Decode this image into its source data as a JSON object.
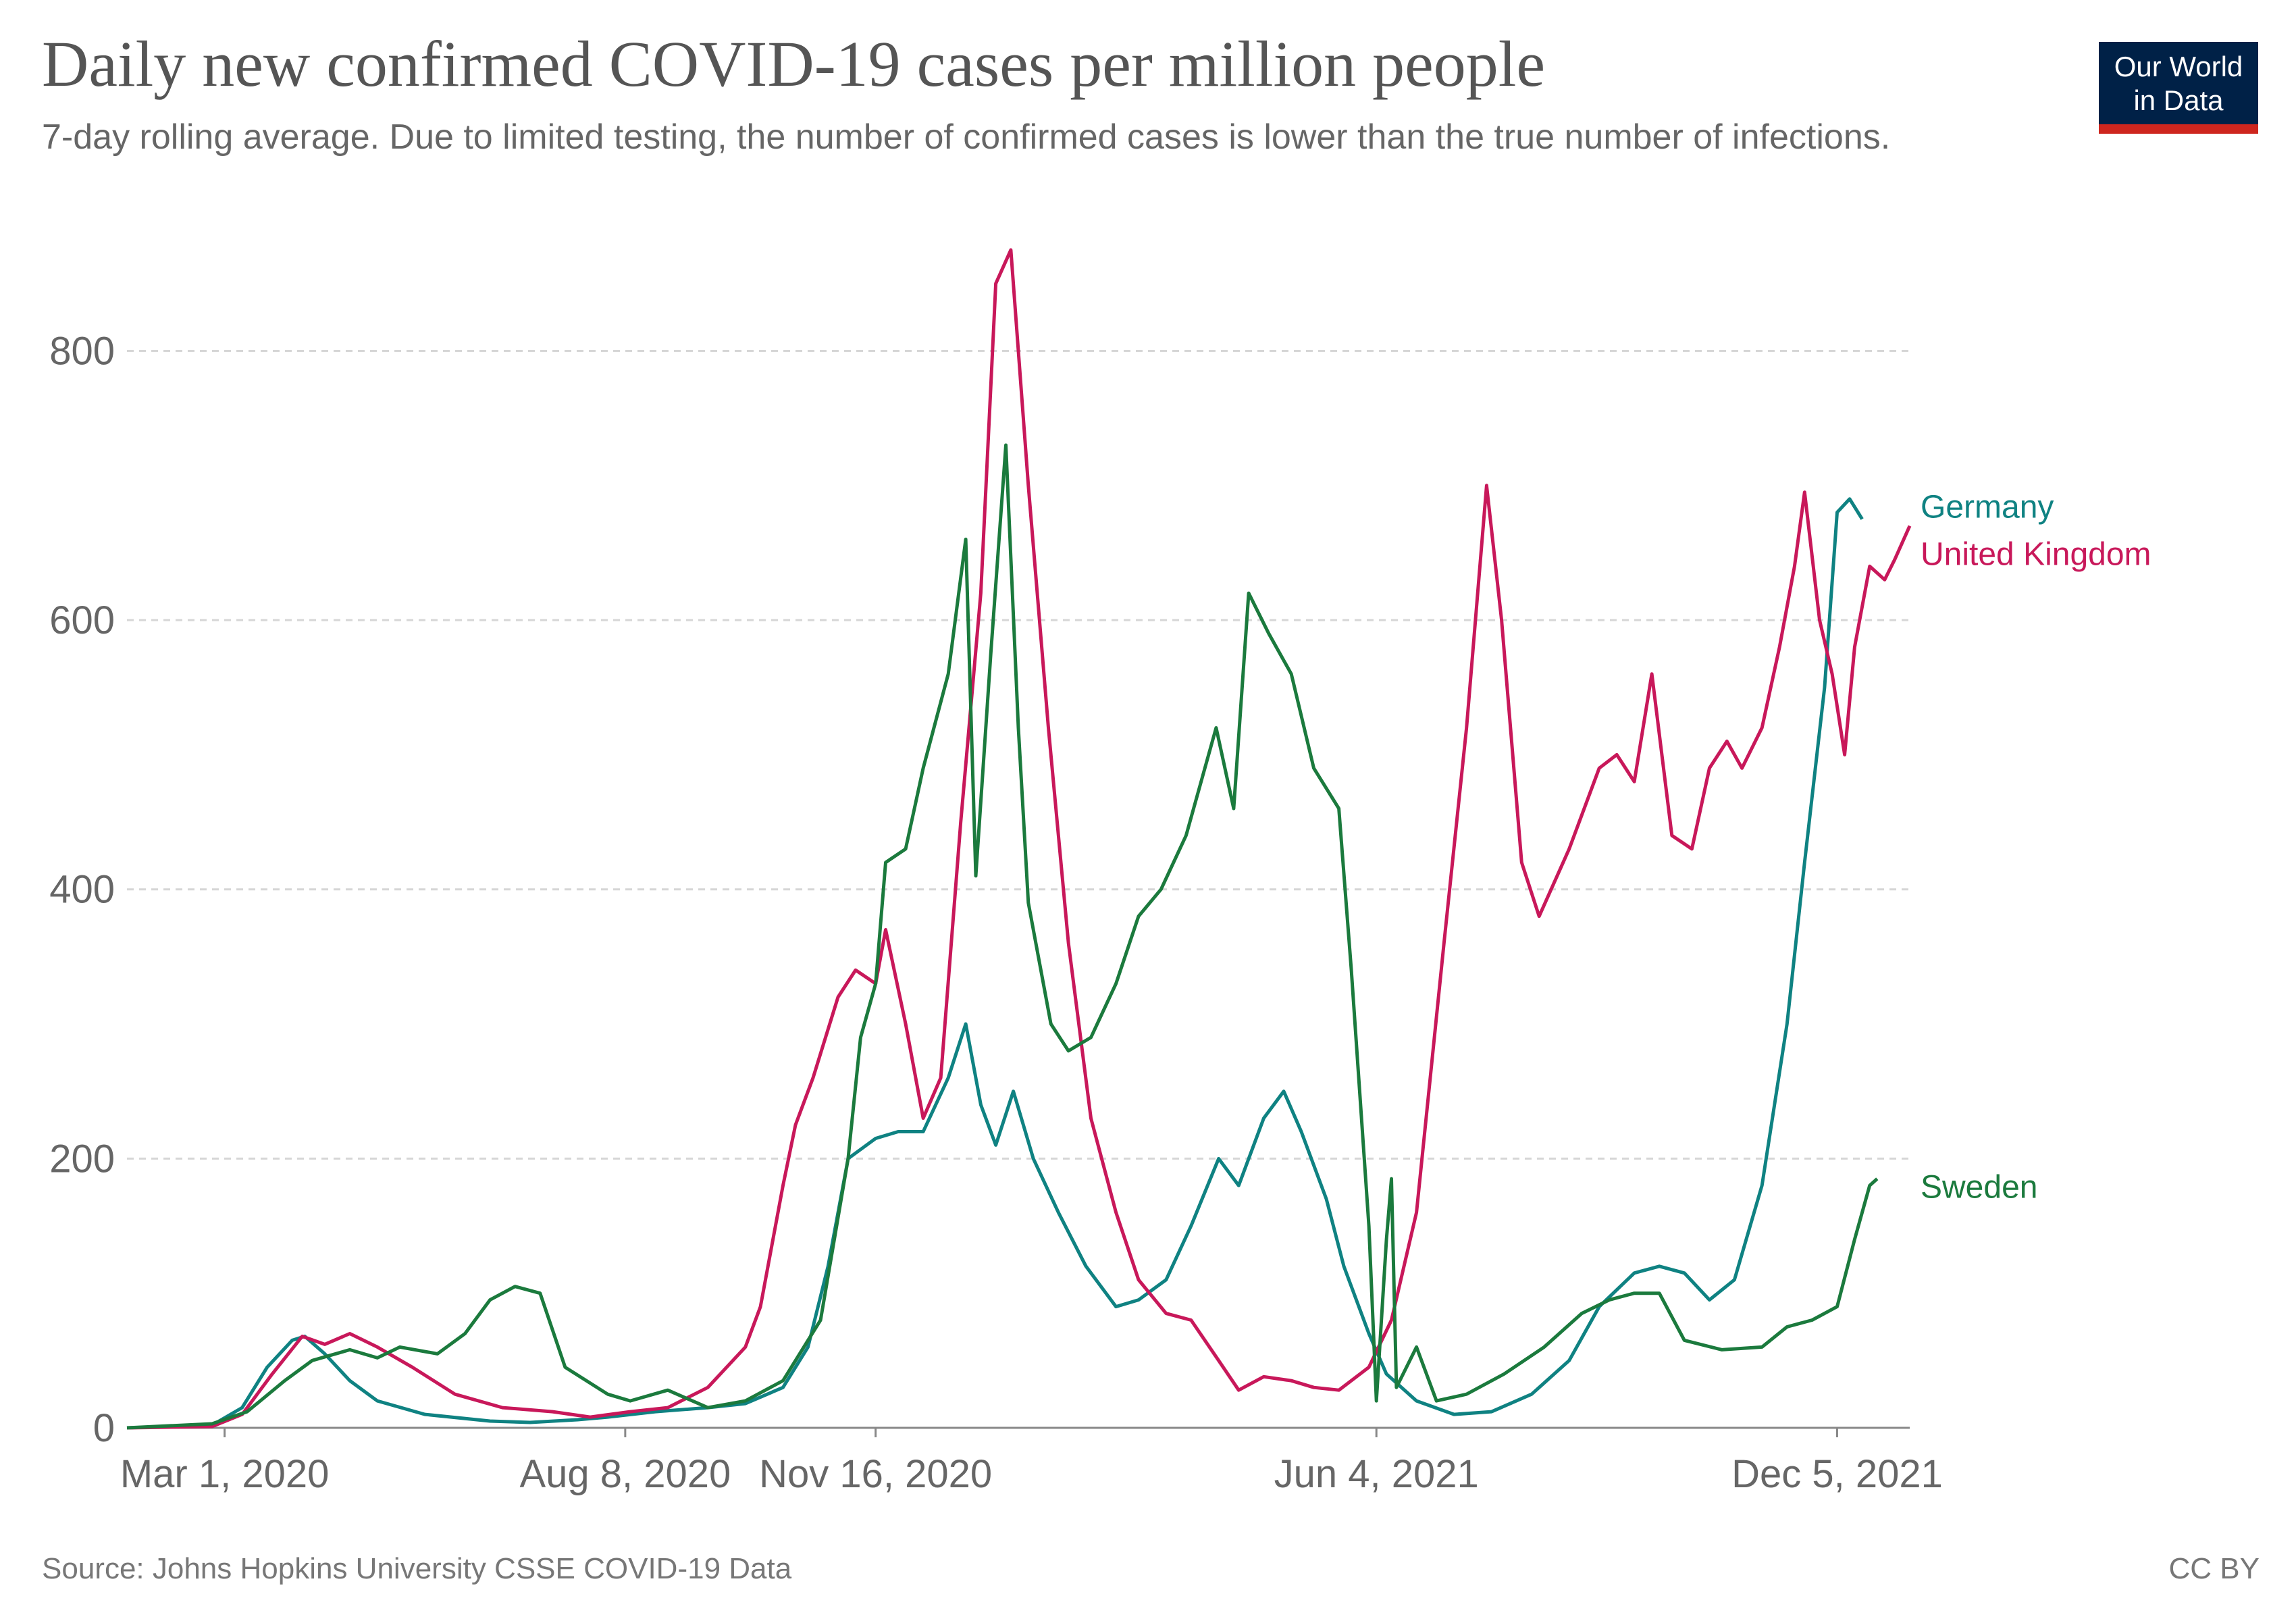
{
  "header": {
    "title": "Daily new confirmed COVID-19 cases per million people",
    "subtitle": "7-day rolling average. Due to limited testing, the number of confirmed cases is lower than the true number of infections."
  },
  "logo": {
    "line1": "Our World",
    "line2": "in Data",
    "bg_color": "#002147",
    "accent_color": "#ce261e"
  },
  "footer": {
    "source": "Source: Johns Hopkins University CSSE COVID-19 Data",
    "license": "CC BY"
  },
  "chart_data": {
    "type": "line",
    "title": "Daily new confirmed COVID-19 cases per million people",
    "xlabel": "",
    "ylabel": "",
    "ylim": [
      0,
      880
    ],
    "x_range": [
      "2020-01-22",
      "2022-01-03"
    ],
    "yticks": [
      0,
      200,
      400,
      600,
      800
    ],
    "ytick_labels": [
      "0",
      "200",
      "400",
      "600",
      "800"
    ],
    "xticks": [
      {
        "date": "2020-03-01",
        "label": "Mar 1, 2020"
      },
      {
        "date": "2020-08-08",
        "label": "Aug 8, 2020"
      },
      {
        "date": "2020-11-16",
        "label": "Nov 16, 2020"
      },
      {
        "date": "2021-06-04",
        "label": "Jun 4, 2021"
      },
      {
        "date": "2021-12-05",
        "label": "Dec 5, 2021"
      }
    ],
    "grid": "horizontal dashed",
    "series": [
      {
        "name": "Germany",
        "color": "#0f8282",
        "points": [
          [
            "2020-01-22",
            0
          ],
          [
            "2020-02-25",
            2
          ],
          [
            "2020-03-08",
            15
          ],
          [
            "2020-03-18",
            45
          ],
          [
            "2020-03-28",
            65
          ],
          [
            "2020-04-02",
            68
          ],
          [
            "2020-04-10",
            55
          ],
          [
            "2020-04-20",
            35
          ],
          [
            "2020-05-01",
            20
          ],
          [
            "2020-05-20",
            10
          ],
          [
            "2020-06-15",
            5
          ],
          [
            "2020-07-01",
            4
          ],
          [
            "2020-07-20",
            6
          ],
          [
            "2020-08-01",
            8
          ],
          [
            "2020-08-20",
            12
          ],
          [
            "2020-09-10",
            15
          ],
          [
            "2020-09-25",
            18
          ],
          [
            "2020-10-10",
            30
          ],
          [
            "2020-10-20",
            60
          ],
          [
            "2020-10-28",
            120
          ],
          [
            "2020-11-05",
            200
          ],
          [
            "2020-11-16",
            215
          ],
          [
            "2020-11-25",
            220
          ],
          [
            "2020-12-05",
            220
          ],
          [
            "2020-12-15",
            260
          ],
          [
            "2020-12-22",
            300
          ],
          [
            "2020-12-28",
            240
          ],
          [
            "2021-01-03",
            210
          ],
          [
            "2021-01-10",
            250
          ],
          [
            "2021-01-18",
            200
          ],
          [
            "2021-01-28",
            160
          ],
          [
            "2021-02-08",
            120
          ],
          [
            "2021-02-20",
            90
          ],
          [
            "2021-03-01",
            95
          ],
          [
            "2021-03-12",
            110
          ],
          [
            "2021-03-22",
            150
          ],
          [
            "2021-04-02",
            200
          ],
          [
            "2021-04-10",
            180
          ],
          [
            "2021-04-20",
            230
          ],
          [
            "2021-04-28",
            250
          ],
          [
            "2021-05-05",
            220
          ],
          [
            "2021-05-15",
            170
          ],
          [
            "2021-05-22",
            120
          ],
          [
            "2021-06-01",
            70
          ],
          [
            "2021-06-08",
            40
          ],
          [
            "2021-06-20",
            20
          ],
          [
            "2021-07-05",
            10
          ],
          [
            "2021-07-20",
            12
          ],
          [
            "2021-08-05",
            25
          ],
          [
            "2021-08-20",
            50
          ],
          [
            "2021-09-01",
            90
          ],
          [
            "2021-09-15",
            115
          ],
          [
            "2021-09-25",
            120
          ],
          [
            "2021-10-05",
            115
          ],
          [
            "2021-10-15",
            95
          ],
          [
            "2021-10-25",
            110
          ],
          [
            "2021-11-05",
            180
          ],
          [
            "2021-11-15",
            300
          ],
          [
            "2021-11-22",
            420
          ],
          [
            "2021-11-30",
            550
          ],
          [
            "2021-12-05",
            680
          ],
          [
            "2021-12-10",
            690
          ],
          [
            "2021-12-15",
            675
          ]
        ]
      },
      {
        "name": "United Kingdom",
        "color": "#c8185a",
        "points": [
          [
            "2020-01-22",
            0
          ],
          [
            "2020-02-25",
            1
          ],
          [
            "2020-03-08",
            10
          ],
          [
            "2020-03-20",
            40
          ],
          [
            "2020-04-01",
            68
          ],
          [
            "2020-04-10",
            62
          ],
          [
            "2020-04-20",
            70
          ],
          [
            "2020-05-01",
            60
          ],
          [
            "2020-05-15",
            45
          ],
          [
            "2020-06-01",
            25
          ],
          [
            "2020-06-20",
            15
          ],
          [
            "2020-07-10",
            12
          ],
          [
            "2020-07-25",
            8
          ],
          [
            "2020-08-10",
            12
          ],
          [
            "2020-08-25",
            15
          ],
          [
            "2020-09-10",
            30
          ],
          [
            "2020-09-25",
            60
          ],
          [
            "2020-10-01",
            90
          ],
          [
            "2020-10-10",
            180
          ],
          [
            "2020-10-15",
            225
          ],
          [
            "2020-10-22",
            260
          ],
          [
            "2020-11-01",
            320
          ],
          [
            "2020-11-08",
            340
          ],
          [
            "2020-11-16",
            330
          ],
          [
            "2020-11-20",
            370
          ],
          [
            "2020-11-28",
            300
          ],
          [
            "2020-12-05",
            230
          ],
          [
            "2020-12-12",
            260
          ],
          [
            "2020-12-20",
            450
          ],
          [
            "2020-12-28",
            620
          ],
          [
            "2021-01-03",
            850
          ],
          [
            "2021-01-09",
            875
          ],
          [
            "2021-01-16",
            700
          ],
          [
            "2021-01-24",
            520
          ],
          [
            "2021-02-01",
            360
          ],
          [
            "2021-02-10",
            230
          ],
          [
            "2021-02-20",
            160
          ],
          [
            "2021-03-01",
            110
          ],
          [
            "2021-03-12",
            85
          ],
          [
            "2021-03-22",
            80
          ],
          [
            "2021-04-02",
            50
          ],
          [
            "2021-04-10",
            28
          ],
          [
            "2021-04-20",
            38
          ],
          [
            "2021-05-01",
            35
          ],
          [
            "2021-05-10",
            30
          ],
          [
            "2021-05-20",
            28
          ],
          [
            "2021-06-01",
            45
          ],
          [
            "2021-06-10",
            80
          ],
          [
            "2021-06-20",
            160
          ],
          [
            "2021-07-01",
            360
          ],
          [
            "2021-07-10",
            520
          ],
          [
            "2021-07-18",
            700
          ],
          [
            "2021-07-24",
            600
          ],
          [
            "2021-08-01",
            420
          ],
          [
            "2021-08-08",
            380
          ],
          [
            "2021-08-20",
            430
          ],
          [
            "2021-09-01",
            490
          ],
          [
            "2021-09-08",
            500
          ],
          [
            "2021-09-15",
            480
          ],
          [
            "2021-09-22",
            560
          ],
          [
            "2021-09-30",
            440
          ],
          [
            "2021-10-08",
            430
          ],
          [
            "2021-10-15",
            490
          ],
          [
            "2021-10-22",
            510
          ],
          [
            "2021-10-28",
            490
          ],
          [
            "2021-11-05",
            520
          ],
          [
            "2021-11-12",
            580
          ],
          [
            "2021-11-18",
            640
          ],
          [
            "2021-11-22",
            695
          ],
          [
            "2021-11-28",
            600
          ],
          [
            "2021-12-03",
            560
          ],
          [
            "2021-12-08",
            500
          ],
          [
            "2021-12-12",
            580
          ],
          [
            "2021-12-18",
            640
          ],
          [
            "2021-12-24",
            630
          ],
          [
            "2021-12-28",
            645
          ],
          [
            "2022-01-03",
            670
          ]
        ]
      },
      {
        "name": "Sweden",
        "color": "#1b7a3d",
        "points": [
          [
            "2020-01-22",
            0
          ],
          [
            "2020-02-25",
            3
          ],
          [
            "2020-03-10",
            12
          ],
          [
            "2020-03-25",
            35
          ],
          [
            "2020-04-05",
            50
          ],
          [
            "2020-04-20",
            58
          ],
          [
            "2020-05-01",
            52
          ],
          [
            "2020-05-10",
            60
          ],
          [
            "2020-05-25",
            55
          ],
          [
            "2020-06-05",
            70
          ],
          [
            "2020-06-15",
            95
          ],
          [
            "2020-06-25",
            105
          ],
          [
            "2020-07-05",
            100
          ],
          [
            "2020-07-15",
            45
          ],
          [
            "2020-08-01",
            25
          ],
          [
            "2020-08-10",
            20
          ],
          [
            "2020-08-25",
            28
          ],
          [
            "2020-09-10",
            15
          ],
          [
            "2020-09-25",
            20
          ],
          [
            "2020-10-10",
            35
          ],
          [
            "2020-10-25",
            80
          ],
          [
            "2020-11-05",
            200
          ],
          [
            "2020-11-10",
            290
          ],
          [
            "2020-11-16",
            330
          ],
          [
            "2020-11-20",
            420
          ],
          [
            "2020-11-28",
            430
          ],
          [
            "2020-12-05",
            490
          ],
          [
            "2020-12-15",
            560
          ],
          [
            "2020-12-22",
            660
          ],
          [
            "2020-12-26",
            410
          ],
          [
            "2021-01-01",
            575
          ],
          [
            "2021-01-07",
            730
          ],
          [
            "2021-01-12",
            520
          ],
          [
            "2021-01-16",
            390
          ],
          [
            "2021-01-25",
            300
          ],
          [
            "2021-02-01",
            280
          ],
          [
            "2021-02-10",
            290
          ],
          [
            "2021-02-20",
            330
          ],
          [
            "2021-03-01",
            380
          ],
          [
            "2021-03-10",
            400
          ],
          [
            "2021-03-20",
            440
          ],
          [
            "2021-04-01",
            520
          ],
          [
            "2021-04-08",
            460
          ],
          [
            "2021-04-14",
            620
          ],
          [
            "2021-04-22",
            590
          ],
          [
            "2021-05-01",
            560
          ],
          [
            "2021-05-10",
            490
          ],
          [
            "2021-05-20",
            460
          ],
          [
            "2021-05-25",
            340
          ],
          [
            "2021-06-01",
            150
          ],
          [
            "2021-06-04",
            20
          ],
          [
            "2021-06-08",
            140
          ],
          [
            "2021-06-10",
            185
          ],
          [
            "2021-06-12",
            30
          ],
          [
            "2021-06-20",
            60
          ],
          [
            "2021-06-28",
            20
          ],
          [
            "2021-07-10",
            25
          ],
          [
            "2021-07-25",
            40
          ],
          [
            "2021-08-10",
            60
          ],
          [
            "2021-08-25",
            85
          ],
          [
            "2021-09-05",
            95
          ],
          [
            "2021-09-15",
            100
          ],
          [
            "2021-09-25",
            100
          ],
          [
            "2021-10-05",
            65
          ],
          [
            "2021-10-20",
            58
          ],
          [
            "2021-11-05",
            60
          ],
          [
            "2021-11-15",
            75
          ],
          [
            "2021-11-25",
            80
          ],
          [
            "2021-12-05",
            90
          ],
          [
            "2021-12-12",
            140
          ],
          [
            "2021-12-18",
            180
          ],
          [
            "2021-12-21",
            185
          ]
        ]
      }
    ]
  }
}
